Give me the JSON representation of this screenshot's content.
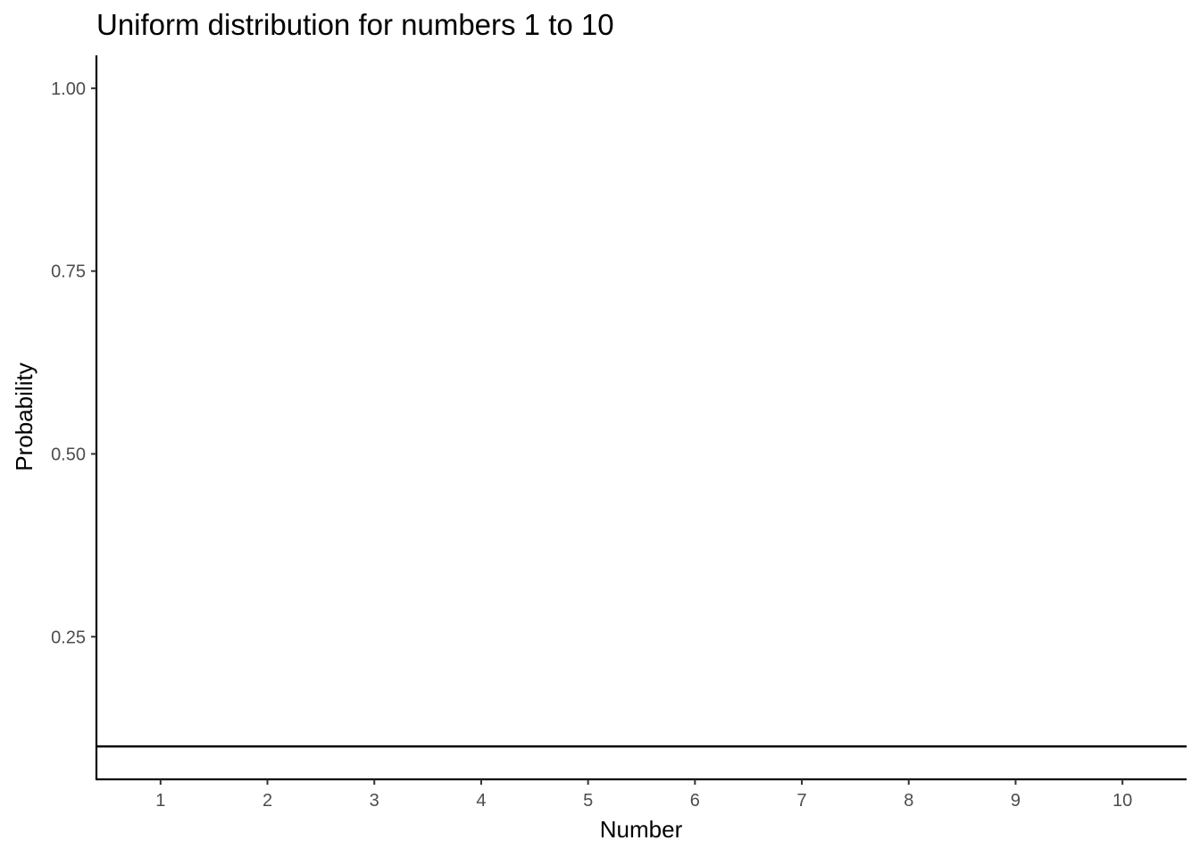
{
  "chart_data": {
    "type": "line",
    "title": "Uniform distribution for numbers 1 to 10",
    "xlabel": "Number",
    "ylabel": "Probability",
    "x": [
      1,
      2,
      3,
      4,
      5,
      6,
      7,
      8,
      9,
      10
    ],
    "series": [
      {
        "values": [
          0.1,
          0.1,
          0.1,
          0.1,
          0.1,
          0.1,
          0.1,
          0.1,
          0.1,
          0.1
        ]
      }
    ],
    "xticks": [
      "1",
      "2",
      "3",
      "4",
      "5",
      "6",
      "7",
      "8",
      "9",
      "10"
    ],
    "yticks": [
      "0.25",
      "0.50",
      "0.75",
      "1.00"
    ],
    "ylim": [
      0.055,
      1.045
    ],
    "xlim": [
      0.4,
      10.6
    ],
    "grid": false,
    "line_color": "#000000"
  }
}
